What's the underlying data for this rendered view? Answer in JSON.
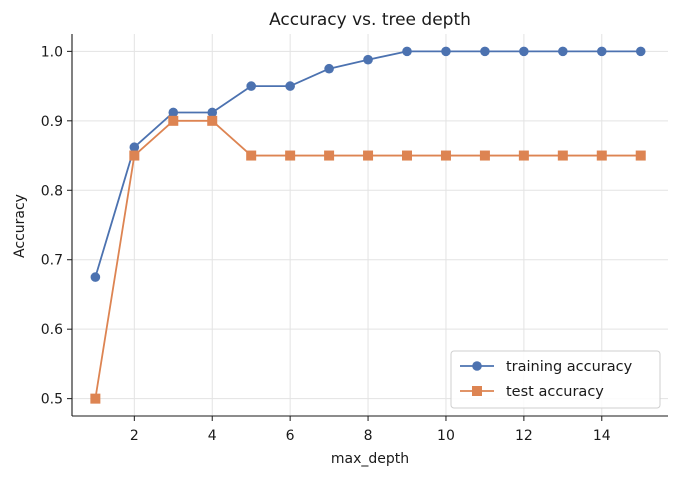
{
  "chart_data": {
    "type": "line",
    "title": "Accuracy vs. tree depth",
    "xlabel": "max_depth",
    "ylabel": "Accuracy",
    "xlim": [
      0.4,
      15.7
    ],
    "ylim": [
      0.475,
      1.025
    ],
    "xticks": [
      2,
      4,
      6,
      8,
      10,
      12,
      14
    ],
    "yticks": [
      0.5,
      0.6,
      0.7,
      0.8,
      0.9,
      1.0
    ],
    "xtick_labels": [
      "2",
      "4",
      "6",
      "8",
      "10",
      "12",
      "14"
    ],
    "ytick_labels": [
      "0.5",
      "0.6",
      "0.7",
      "0.8",
      "0.9",
      "1.0"
    ],
    "grid": true,
    "legend_position": "bottom-right",
    "x": [
      1,
      2,
      3,
      4,
      5,
      6,
      7,
      8,
      9,
      10,
      11,
      12,
      13,
      14,
      15
    ],
    "series": [
      {
        "name": "training accuracy",
        "color": "#4c72b0",
        "marker": "circle",
        "values": [
          0.675,
          0.862,
          0.912,
          0.912,
          0.95,
          0.95,
          0.975,
          0.988,
          1.0,
          1.0,
          1.0,
          1.0,
          1.0,
          1.0,
          1.0
        ]
      },
      {
        "name": "test accuracy",
        "color": "#dd8452",
        "marker": "square",
        "values": [
          0.5,
          0.85,
          0.9,
          0.9,
          0.85,
          0.85,
          0.85,
          0.85,
          0.85,
          0.85,
          0.85,
          0.85,
          0.85,
          0.85,
          0.85
        ]
      }
    ]
  }
}
